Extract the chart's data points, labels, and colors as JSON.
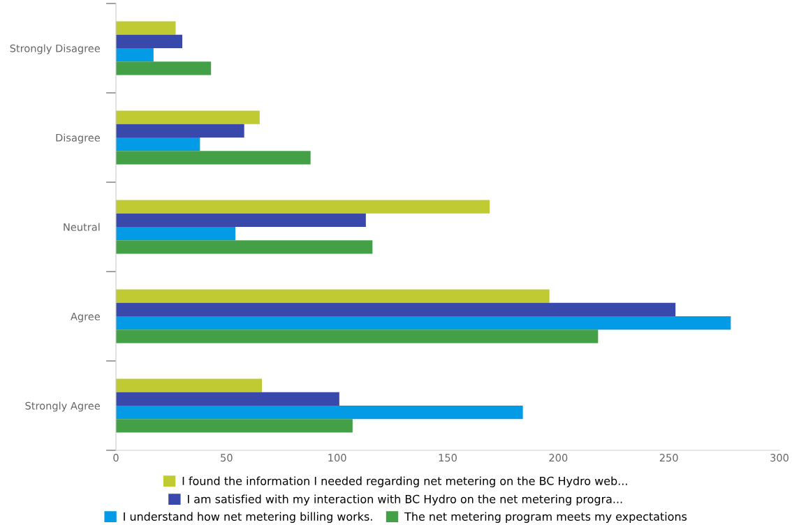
{
  "chart_data": {
    "type": "bar",
    "orientation": "horizontal",
    "categories": [
      "Strongly Disagree",
      "Disagree",
      "Neutral",
      "Agree",
      "Strongly Agree"
    ],
    "series": [
      {
        "name": "I found the information I needed regarding net metering on the BC Hydro web...",
        "color": "#c0ca33",
        "values": [
          27,
          65,
          169,
          196,
          66
        ]
      },
      {
        "name": "I am satisfied with my interaction with BC Hydro on the net metering progra...",
        "color": "#3949ab",
        "values": [
          30,
          58,
          113,
          253,
          101
        ]
      },
      {
        "name": "I understand how net metering billing works.",
        "color": "#039be5",
        "values": [
          17,
          38,
          54,
          278,
          184
        ]
      },
      {
        "name": "The net metering program meets my expectations",
        "color": "#43a047",
        "values": [
          43,
          88,
          116,
          218,
          107
        ]
      }
    ],
    "xlim": [
      0,
      300
    ],
    "xticks": [
      0,
      50,
      100,
      150,
      200,
      250,
      300
    ],
    "grid": false,
    "legend": "bottom"
  }
}
